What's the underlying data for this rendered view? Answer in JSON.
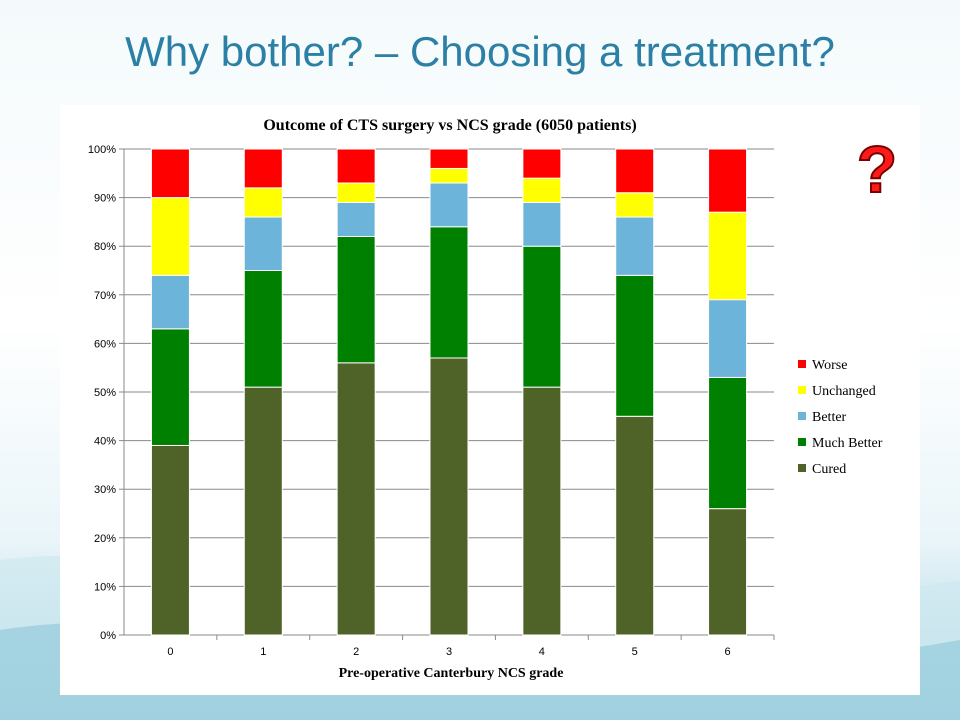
{
  "slide": {
    "title": "Why bother? – Choosing a treatment?",
    "question_mark": "?"
  },
  "chart_data": {
    "type": "bar",
    "stacked": true,
    "title": "Outcome of CTS surgery vs NCS grade (6050 patients)",
    "xlabel": "Pre-operative Canterbury NCS grade",
    "ylabel": "",
    "ylim": [
      0,
      100
    ],
    "yticks": [
      "0%",
      "10%",
      "20%",
      "30%",
      "40%",
      "50%",
      "60%",
      "70%",
      "80%",
      "90%",
      "100%"
    ],
    "categories": [
      "0",
      "1",
      "2",
      "3",
      "4",
      "5",
      "6"
    ],
    "legend_position": "right",
    "grid": true,
    "series": [
      {
        "name": "Cured",
        "color": "#4f6228",
        "values": [
          39,
          51,
          56,
          57,
          51,
          45,
          26
        ]
      },
      {
        "name": "Much Better",
        "color": "#008000",
        "values": [
          24,
          24,
          26,
          27,
          29,
          29,
          27
        ]
      },
      {
        "name": "Better",
        "color": "#6cb4da",
        "values": [
          11,
          11,
          7,
          9,
          9,
          12,
          16
        ]
      },
      {
        "name": "Unchanged",
        "color": "#ffff00",
        "values": [
          16,
          6,
          4,
          3,
          5,
          5,
          18
        ]
      },
      {
        "name": "Worse",
        "color": "#ff0000",
        "values": [
          10,
          8,
          7,
          4,
          6,
          9,
          13
        ]
      }
    ]
  }
}
